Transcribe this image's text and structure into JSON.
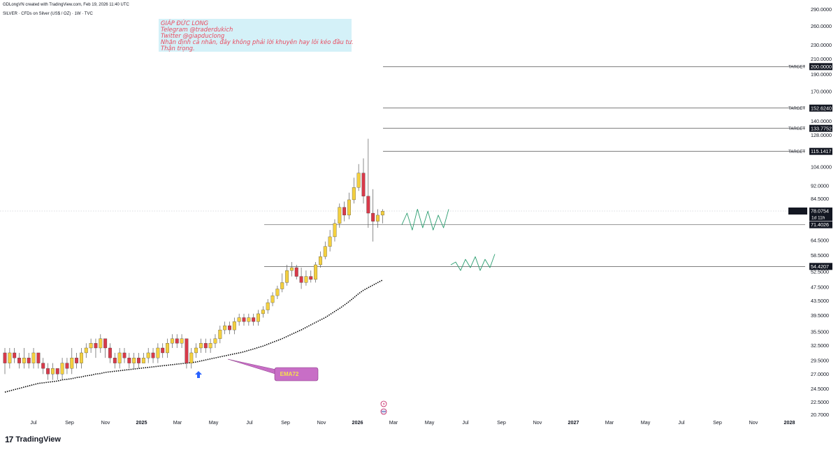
{
  "header": {
    "created": "GDLongVN created with TradingView.com, Feb 19, 2026 11:40 UTC",
    "symbol_line": "SILVER · CFDs on Silver (US$ / OZ) · 1W · TVC"
  },
  "note": {
    "lines": [
      "GIÁP ĐỨC LONG",
      "Telegram @traderdukich",
      "Twitter @giapduclong",
      "Nhận định cá nhân, đây không phải lời khuyên hay lôi kéo đầu tư.",
      "Thận trọng."
    ]
  },
  "brand": {
    "logo": "17",
    "name": "TradingView"
  },
  "colors": {
    "bull": "#f4d03f",
    "bear": "#d83a4a",
    "wick": "#5a5a5a",
    "ema": "#000000",
    "sketch": "#2a9d6f",
    "ema_label_bg": "#c86ec6",
    "ema_label_text": "#f7e24a",
    "arrow": "#2962ff",
    "price_tag_bg": "#131722"
  },
  "chart_data": {
    "type": "candlestick",
    "timeframe": "1W",
    "y_scale": "log",
    "ylim": [
      20,
      290
    ],
    "y_ticks": [
      "290.0000",
      "260.0000",
      "230.0000",
      "210.0000",
      "190.0000",
      "170.0000",
      "140.0000",
      "128.0000",
      "104.0000",
      "92.0000",
      "84.5000",
      "64.5000",
      "58.5000",
      "52.5000",
      "47.5000",
      "43.5000",
      "39.5000",
      "35.5000",
      "32.5000",
      "29.5000",
      "27.0000",
      "24.5000",
      "22.5000",
      "20.7000"
    ],
    "x_ticks": [
      "Jul",
      "Sep",
      "Nov",
      "2025",
      "Mar",
      "May",
      "Jul",
      "Sep",
      "Nov",
      "2026",
      "Mar",
      "May",
      "Jul",
      "Sep",
      "Nov",
      "2027",
      "Mar",
      "May",
      "Jul",
      "Sep",
      "Nov",
      "2028"
    ],
    "candles": [
      [
        31,
        29,
        32,
        27
      ],
      [
        29,
        31,
        32,
        28
      ],
      [
        31,
        30,
        32,
        29
      ],
      [
        30,
        29,
        31,
        28
      ],
      [
        29,
        30,
        32,
        28
      ],
      [
        30,
        29,
        31,
        28
      ],
      [
        29,
        31,
        32,
        28
      ],
      [
        31,
        29,
        31,
        28
      ],
      [
        29,
        28,
        30,
        27
      ],
      [
        28,
        27,
        29,
        26
      ],
      [
        27,
        28,
        29,
        26
      ],
      [
        28,
        27,
        28,
        26
      ],
      [
        27,
        29,
        30,
        26
      ],
      [
        29,
        28,
        30,
        27
      ],
      [
        28,
        30,
        32,
        27
      ],
      [
        30,
        29,
        31,
        28
      ],
      [
        29,
        31,
        32,
        28
      ],
      [
        31,
        32,
        33,
        30
      ],
      [
        32,
        33,
        34,
        31
      ],
      [
        33,
        32,
        34,
        30
      ],
      [
        32,
        34,
        35,
        31
      ],
      [
        34,
        32,
        34,
        30
      ],
      [
        32,
        30,
        33,
        29
      ],
      [
        30,
        29,
        31,
        28
      ],
      [
        29,
        31,
        32,
        28
      ],
      [
        31,
        30,
        32,
        29
      ],
      [
        30,
        29,
        31,
        28
      ],
      [
        29,
        30,
        31,
        28
      ],
      [
        30,
        29,
        31,
        28
      ],
      [
        29,
        30,
        31,
        29
      ],
      [
        30,
        31,
        32,
        29
      ],
      [
        31,
        30,
        32,
        29
      ],
      [
        30,
        32,
        33,
        29
      ],
      [
        32,
        31,
        33,
        30
      ],
      [
        31,
        33,
        34,
        30
      ],
      [
        33,
        34,
        35,
        32
      ],
      [
        34,
        33,
        35,
        32
      ],
      [
        33,
        34,
        35,
        32
      ],
      [
        34,
        29,
        34,
        28
      ],
      [
        29,
        31,
        32,
        28
      ],
      [
        31,
        32,
        33,
        30
      ],
      [
        32,
        33,
        34,
        31
      ],
      [
        33,
        32,
        34,
        31
      ],
      [
        32,
        33,
        34,
        31
      ],
      [
        33,
        34,
        35,
        32
      ],
      [
        34,
        36,
        37,
        33
      ],
      [
        36,
        37,
        38,
        35
      ],
      [
        37,
        36,
        38,
        35
      ],
      [
        36,
        38,
        39,
        35
      ],
      [
        38,
        39,
        40,
        37
      ],
      [
        39,
        38,
        40,
        37
      ],
      [
        38,
        39,
        40,
        37
      ],
      [
        39,
        38,
        40,
        37
      ],
      [
        38,
        40,
        41,
        37
      ],
      [
        40,
        41,
        42,
        39
      ],
      [
        41,
        43,
        44,
        40
      ],
      [
        43,
        45,
        46,
        42
      ],
      [
        45,
        47,
        48,
        44
      ],
      [
        47,
        49,
        52,
        46
      ],
      [
        49,
        53,
        55,
        48
      ],
      [
        53,
        54,
        56,
        51
      ],
      [
        54,
        51,
        55,
        50
      ],
      [
        51,
        49,
        54,
        47
      ],
      [
        49,
        51,
        53,
        48
      ],
      [
        51,
        50,
        53,
        49
      ],
      [
        50,
        55,
        56,
        49
      ],
      [
        55,
        58,
        60,
        54
      ],
      [
        58,
        62,
        64,
        57
      ],
      [
        62,
        66,
        69,
        60
      ],
      [
        66,
        72,
        74,
        64
      ],
      [
        72,
        80,
        82,
        70
      ],
      [
        80,
        76,
        83,
        73
      ],
      [
        76,
        84,
        88,
        74
      ],
      [
        84,
        91,
        97,
        82
      ],
      [
        91,
        100,
        106,
        89
      ],
      [
        100,
        86,
        110,
        82
      ],
      [
        86,
        77,
        125,
        70
      ],
      [
        77,
        73,
        90,
        64
      ],
      [
        73,
        76,
        79,
        70
      ],
      [
        76,
        78,
        79,
        72
      ]
    ],
    "ema72": {
      "name": "EMA72",
      "values": [
        24,
        24.2,
        24.4,
        24.6,
        24.8,
        25,
        25.2,
        25.4,
        25.5,
        25.6,
        25.7,
        25.8,
        26,
        26.1,
        26.2,
        26.4,
        26.5,
        26.7,
        26.8,
        27,
        27.1,
        27.3,
        27.4,
        27.5,
        27.6,
        27.7,
        27.8,
        27.9,
        28,
        28.1,
        28.2,
        28.3,
        28.4,
        28.5,
        28.6,
        28.7,
        28.8,
        28.9,
        29,
        29.1,
        29.2,
        29.4,
        29.6,
        29.8,
        30,
        30.2,
        30.4,
        30.6,
        30.8,
        31,
        31.2,
        31.5,
        31.8,
        32.1,
        32.4,
        32.8,
        33.2,
        33.6,
        34,
        34.5,
        35,
        35.5,
        36,
        36.6,
        37.2,
        37.8,
        38.4,
        39,
        39.8,
        40.6,
        41.4,
        42.3,
        43.3,
        44.4,
        45.6,
        46.6,
        47.4,
        48.2,
        49,
        49.8
      ]
    },
    "levels": [
      {
        "label": "TARGET",
        "value": "200.0000"
      },
      {
        "label": "TARGET",
        "value": "152.6240"
      },
      {
        "label": "TARGET",
        "value": "133.7752"
      },
      {
        "label": "TARGET",
        "value": "115.1417"
      },
      {
        "label": "",
        "value": "71.4026"
      },
      {
        "label": "",
        "value": "54.4207"
      }
    ],
    "current_price": {
      "symbol": "SILVER",
      "value": "78.0754",
      "countdown": "1d 11h"
    },
    "annotations": [
      {
        "text": "EMA72",
        "type": "callout"
      }
    ],
    "projections": [
      {
        "from": "2026-03",
        "to": "2026-06",
        "values": [
          71.4,
          77,
          69,
          79,
          70,
          78,
          69,
          76,
          70,
          79
        ]
      },
      {
        "from": "2026-05",
        "to": "2026-08",
        "values": [
          55,
          56,
          53,
          57,
          54,
          58,
          53,
          57,
          54,
          59
        ]
      }
    ]
  }
}
